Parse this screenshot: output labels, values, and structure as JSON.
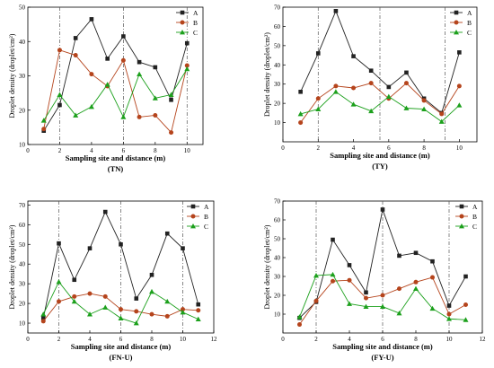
{
  "colors": {
    "A": "#222222",
    "B": "#b5441c",
    "C": "#1ca01c",
    "axis": "#000000",
    "guide": "#555555"
  },
  "chart_data": [
    {
      "type": "line",
      "panel_label": "(TN)",
      "xlabel": "Sampling site and distance (m)",
      "ylabel": "Droplet density (droplet/cm²)",
      "xlim": [
        0,
        11
      ],
      "ylim": [
        10,
        50
      ],
      "xticks": [
        0,
        2,
        4,
        6,
        8,
        10
      ],
      "yticks": [
        10,
        20,
        30,
        40,
        50
      ],
      "guides": [
        2,
        6,
        10
      ],
      "legend": "top-right",
      "x": [
        1,
        2,
        3,
        4,
        5,
        6,
        7,
        8,
        9,
        10
      ],
      "series": [
        {
          "name": "A",
          "marker": "square",
          "values": [
            14,
            21.5,
            41,
            46.5,
            35,
            41.5,
            34,
            32.5,
            23,
            39.5
          ]
        },
        {
          "name": "B",
          "marker": "circle",
          "values": [
            14.5,
            37.5,
            36,
            30.5,
            27,
            34.5,
            18,
            18.5,
            13.5,
            33
          ]
        },
        {
          "name": "C",
          "marker": "triangle",
          "values": [
            17,
            24.5,
            18.5,
            21,
            27.5,
            18,
            30.5,
            23.5,
            24.5,
            32
          ]
        }
      ]
    },
    {
      "type": "line",
      "panel_label": "(TY)",
      "xlabel": "Sampling site and distance (m)",
      "ylabel": "Droplet density (droplet/cm²)",
      "xlim": [
        0,
        11
      ],
      "ylim": [
        0,
        70
      ],
      "xticks": [
        0,
        2,
        4,
        6,
        8,
        10
      ],
      "yticks": [
        10,
        20,
        30,
        40,
        50,
        60,
        70
      ],
      "guides": [
        2,
        5.5,
        9.2
      ],
      "legend": "top-right",
      "x": [
        1,
        2,
        3,
        4,
        5,
        6,
        7,
        8,
        9,
        10
      ],
      "series": [
        {
          "name": "A",
          "marker": "square",
          "values": [
            26,
            46,
            68,
            44.5,
            37,
            28.5,
            36,
            22.5,
            15,
            46.5
          ]
        },
        {
          "name": "B",
          "marker": "circle",
          "values": [
            10,
            22.5,
            29,
            28,
            30.5,
            22.5,
            30.5,
            21.5,
            14.5,
            29
          ]
        },
        {
          "name": "C",
          "marker": "triangle",
          "values": [
            14.5,
            17,
            26,
            19.5,
            16,
            23.5,
            17.5,
            17,
            10.5,
            19
          ]
        }
      ]
    },
    {
      "type": "line",
      "panel_label": "(FN-U)",
      "xlabel": "Sampling site and distance (m)",
      "ylabel": "Droplet density (droplet/cm²)",
      "xlim": [
        0,
        12
      ],
      "ylim": [
        5,
        72
      ],
      "xticks": [
        0,
        2,
        4,
        6,
        8,
        10,
        12
      ],
      "yticks": [
        10,
        20,
        30,
        40,
        50,
        60,
        70
      ],
      "guides": [
        2,
        6,
        10
      ],
      "legend": "top-right",
      "x": [
        1,
        2,
        3,
        4,
        5,
        6,
        7,
        8,
        9,
        10,
        11
      ],
      "series": [
        {
          "name": "A",
          "marker": "square",
          "values": [
            12.5,
            50.5,
            32,
            48,
            66.5,
            50,
            22.5,
            34.5,
            55.5,
            48,
            19.5
          ]
        },
        {
          "name": "B",
          "marker": "circle",
          "values": [
            11,
            21,
            23.5,
            25,
            23.5,
            17,
            16,
            14.5,
            13.5,
            17,
            16.5
          ]
        },
        {
          "name": "C",
          "marker": "triangle",
          "values": [
            14.5,
            31,
            21,
            14.5,
            18,
            12.5,
            10,
            26,
            21,
            15.5,
            12
          ]
        }
      ]
    },
    {
      "type": "line",
      "panel_label": "(FY-U)",
      "xlabel": "Sampling site and distance (m)",
      "ylabel": "Droplet density (droplet/cm²)",
      "xlim": [
        0,
        12
      ],
      "ylim": [
        0,
        70
      ],
      "xticks": [
        0,
        2,
        4,
        6,
        8,
        10,
        12
      ],
      "yticks": [
        10,
        20,
        30,
        40,
        50,
        60,
        70
      ],
      "guides": [
        2,
        6,
        10
      ],
      "legend": "top-right",
      "x": [
        1,
        2,
        3,
        4,
        5,
        6,
        7,
        8,
        9,
        10,
        11
      ],
      "series": [
        {
          "name": "A",
          "marker": "square",
          "values": [
            8,
            16.5,
            49.5,
            36,
            21.5,
            65.5,
            41,
            42.5,
            38,
            14.5,
            30
          ]
        },
        {
          "name": "B",
          "marker": "circle",
          "values": [
            4.5,
            17,
            27.5,
            28,
            18.5,
            20,
            23.5,
            27,
            29.5,
            10,
            15
          ]
        },
        {
          "name": "C",
          "marker": "triangle",
          "values": [
            8.5,
            30.5,
            31,
            15.5,
            14,
            14,
            10.5,
            23.5,
            13,
            7.5,
            7
          ]
        }
      ]
    }
  ]
}
